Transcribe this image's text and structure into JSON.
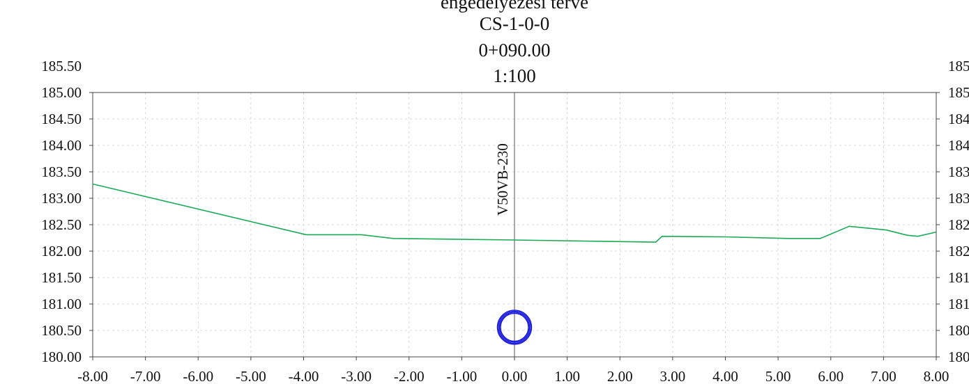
{
  "titles": [
    "engedélyezési terve",
    "CS-1-0-0",
    "0+090.00",
    "1:100"
  ],
  "chart_data": {
    "type": "line",
    "title": "engedélyezési terve / CS-1-0-0 / 0+090.00 / 1:100",
    "xlim": [
      -8.0,
      8.0
    ],
    "ylim": [
      180.0,
      185.5
    ],
    "x_ticks": [
      "-8.00",
      "-7.00",
      "-6.00",
      "-5.00",
      "-4.00",
      "-3.00",
      "-2.00",
      "-1.00",
      "0.00",
      "1.00",
      "2.00",
      "3.00",
      "4.00",
      "5.00",
      "6.00",
      "7.00",
      "8.00"
    ],
    "y_ticks": [
      "180.00",
      "180.50",
      "181.00",
      "181.50",
      "182.00",
      "182.50",
      "183.00",
      "183.50",
      "184.00",
      "184.50",
      "185.00",
      "185.50"
    ],
    "grid": true,
    "series": [
      {
        "color": "#1aaa55",
        "x": [
          -8.0,
          -3.95,
          -2.9,
          -2.3,
          0.0,
          2.68,
          2.8,
          4.0,
          5.2,
          5.8,
          6.35,
          7.05,
          7.45,
          7.65,
          8.0
        ],
        "y": [
          183.27,
          182.31,
          182.31,
          182.24,
          182.21,
          182.17,
          182.28,
          182.27,
          182.24,
          182.24,
          182.47,
          182.4,
          182.3,
          182.28,
          182.36
        ]
      }
    ],
    "centerline": {
      "x": 0.0,
      "label": "V50VB-230",
      "color": "#1515dd"
    },
    "pipe": {
      "x": 0.0,
      "y": 180.56,
      "color": "#1515dd"
    }
  }
}
